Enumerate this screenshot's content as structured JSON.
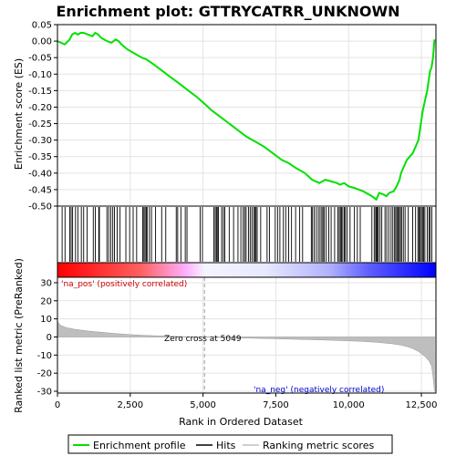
{
  "chart_data": {
    "type": "line",
    "title": "Enrichment plot: GTTRYCATRR_UNKNOWN",
    "xlabel": "Rank in Ordered Dataset",
    "es_panel": {
      "ylabel": "Enrichment score (ES)",
      "ylim": [
        -0.5,
        0.05
      ],
      "yticks": [
        "0.05",
        "0.00",
        "-0.05",
        "-0.10",
        "-0.15",
        "-0.20",
        "-0.25",
        "-0.30",
        "-0.35",
        "-0.40",
        "-0.45",
        "-0.50"
      ],
      "grid": true,
      "line_color": "#00e000",
      "series": [
        {
          "name": "Enrichment profile",
          "x": [
            0,
            250,
            420,
            500,
            600,
            700,
            800,
            900,
            1050,
            1200,
            1300,
            1400,
            1500,
            1700,
            1850,
            2000,
            2100,
            2200,
            2400,
            2700,
            2900,
            3050,
            3300,
            3600,
            3900,
            4200,
            4500,
            4800,
            5050,
            5300,
            5600,
            5900,
            6200,
            6500,
            6800,
            7100,
            7400,
            7700,
            7950,
            8200,
            8500,
            8750,
            9000,
            9100,
            9200,
            9400,
            9600,
            9700,
            9850,
            10000,
            10200,
            10500,
            10800,
            10950,
            11000,
            11050,
            11200,
            11300,
            11400,
            11550,
            11650,
            11750,
            11800,
            11900,
            12000,
            12100,
            12200,
            12300,
            12400,
            12450,
            12500,
            12550,
            12600,
            12650,
            12700,
            12750,
            12800,
            12850,
            12900,
            12950
          ],
          "y": [
            0.0,
            -0.01,
            0.005,
            0.02,
            0.025,
            0.02,
            0.025,
            0.025,
            0.02,
            0.015,
            0.025,
            0.02,
            0.01,
            0.0,
            -0.005,
            0.005,
            0.0,
            -0.01,
            -0.025,
            -0.04,
            -0.05,
            -0.055,
            -0.07,
            -0.09,
            -0.11,
            -0.13,
            -0.15,
            -0.17,
            -0.19,
            -0.21,
            -0.23,
            -0.25,
            -0.27,
            -0.29,
            -0.305,
            -0.32,
            -0.34,
            -0.36,
            -0.37,
            -0.385,
            -0.4,
            -0.42,
            -0.43,
            -0.425,
            -0.42,
            -0.425,
            -0.43,
            -0.435,
            -0.43,
            -0.44,
            -0.445,
            -0.455,
            -0.47,
            -0.48,
            -0.47,
            -0.46,
            -0.465,
            -0.47,
            -0.46,
            -0.455,
            -0.44,
            -0.42,
            -0.4,
            -0.38,
            -0.36,
            -0.35,
            -0.34,
            -0.32,
            -0.3,
            -0.27,
            -0.24,
            -0.21,
            -0.19,
            -0.17,
            -0.15,
            -0.12,
            -0.09,
            -0.08,
            -0.05,
            0.005
          ]
        }
      ]
    },
    "hits": [
      160,
      260,
      420,
      470,
      520,
      620,
      700,
      820,
      900,
      1020,
      1230,
      1300,
      1420,
      1440,
      1700,
      1760,
      1830,
      1900,
      1960,
      2050,
      2150,
      2350,
      2480,
      2600,
      2720,
      2930,
      2970,
      3010,
      3050,
      3080,
      3160,
      3230,
      3370,
      3580,
      3720,
      4080,
      4130,
      4240,
      4390,
      4450,
      4900,
      4980,
      5370,
      5420,
      5460,
      5490,
      5530,
      5640,
      5700,
      5750,
      5900,
      6050,
      6200,
      6300,
      6380,
      6430,
      6480,
      6560,
      6620,
      6680,
      6740,
      6780,
      6820,
      6860,
      6980,
      7200,
      7280,
      7480,
      7560,
      7640,
      7760,
      7840,
      7940,
      8040,
      8180,
      8320,
      8420,
      8720,
      8760,
      8820,
      8890,
      8960,
      9020,
      9080,
      9120,
      9160,
      9230,
      9320,
      9400,
      9520,
      9630,
      9680,
      9720,
      9760,
      9800,
      9850,
      9890,
      9950,
      10050,
      10200,
      10300,
      10400,
      10800,
      10880,
      10930,
      10960,
      10990,
      11020,
      11080,
      11140,
      11250,
      11310,
      11380,
      11460,
      11520,
      11580,
      11620,
      11660,
      11700,
      11740,
      11780,
      11820,
      11880,
      11940,
      12050,
      12200,
      12300,
      12380,
      12420,
      12460,
      12500,
      12540,
      12580,
      12620,
      12700,
      12760,
      12800,
      12860
    ],
    "metric_panel": {
      "ylabel": "Ranked list metric (PreRanked)",
      "ylim": [
        -31,
        33
      ],
      "yticks": [
        "30",
        "20",
        "10",
        "0",
        "-10",
        "-20",
        "-30"
      ],
      "grid": true,
      "x": [
        0,
        100,
        300,
        600,
        1000,
        1500,
        2000,
        2500,
        3000,
        3500,
        4000,
        4500,
        5049,
        6000,
        7000,
        8000,
        9000,
        10000,
        10500,
        11000,
        11500,
        11800,
        12000,
        12200,
        12400,
        12600,
        12750,
        12850,
        12900,
        12950
      ],
      "values": [
        8.5,
        6.5,
        5.2,
        4.2,
        3.4,
        2.6,
        1.9,
        1.3,
        0.9,
        0.6,
        0.35,
        0.15,
        0.0,
        -0.4,
        -0.8,
        -1.2,
        -1.6,
        -2.1,
        -2.5,
        -3.0,
        -3.8,
        -4.5,
        -5.3,
        -6.4,
        -8.0,
        -10.5,
        -13.0,
        -16.0,
        -22.0,
        -30.0
      ],
      "zero_cross_label": "Zero cross at 5049",
      "pos_label": "'na_pos' (positively correlated)",
      "neg_label": "'na_neg' (negatively correlated)"
    },
    "x_axis": {
      "xlim": [
        0,
        13000
      ],
      "xticks": [
        "0",
        "2,500",
        "5,000",
        "7,500",
        "10,000",
        "12,500"
      ],
      "xtick_values": [
        0,
        2500,
        5000,
        7500,
        10000,
        12500
      ]
    },
    "legend": {
      "placement": "bottom",
      "entries": [
        "Enrichment profile",
        "Hits",
        "Ranking metric scores"
      ]
    },
    "colors": {
      "profile": "#00e000",
      "hits": "#000000",
      "metric_fill": "#bebebe",
      "pos_text": "#cc0000",
      "neg_text": "#0000cc",
      "bar_pos": "#ff0000",
      "bar_neg": "#0000ff"
    }
  }
}
